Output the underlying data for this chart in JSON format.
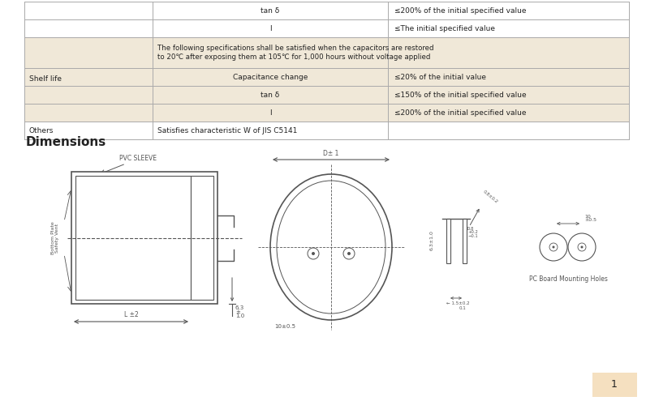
{
  "bg_color": "#ffffff",
  "table_bg_light": "#f0e8d8",
  "table_border": "#aaaaaa",
  "text_color": "#222222",
  "dim_color": "#555555",
  "rows": [
    {
      "col1": "",
      "col2": "tan δ",
      "col3": "≤200% of the initial specified value",
      "bg": "#ffffff",
      "span23": false
    },
    {
      "col1": "",
      "col2": "I",
      "col3": "≤The initial specified value",
      "bg": "#ffffff",
      "span23": false
    },
    {
      "col1": "Shelf life",
      "col2": "The following specifications shall be satisfied when the capacitors are restored\nto 20℃ after exposing them at 105℃ for 1,000 hours without voltage applied",
      "col3": "",
      "bg": "#f0e8d8",
      "span23": true
    },
    {
      "col1": "",
      "col2": "Capacitance change",
      "col3": "≤20% of the initial value",
      "bg": "#f0e8d8",
      "span23": false
    },
    {
      "col1": "",
      "col2": "tan δ",
      "col3": "≤150% of the initial specified value",
      "bg": "#f0e8d8",
      "span23": false
    },
    {
      "col1": "",
      "col2": "I",
      "col3": "≤200% of the initial specified value",
      "bg": "#f0e8d8",
      "span23": false
    },
    {
      "col1": "Others",
      "col2": "Satisfies characteristic W of JIS C5141",
      "col3": "",
      "bg": "#ffffff",
      "span23": true
    }
  ]
}
